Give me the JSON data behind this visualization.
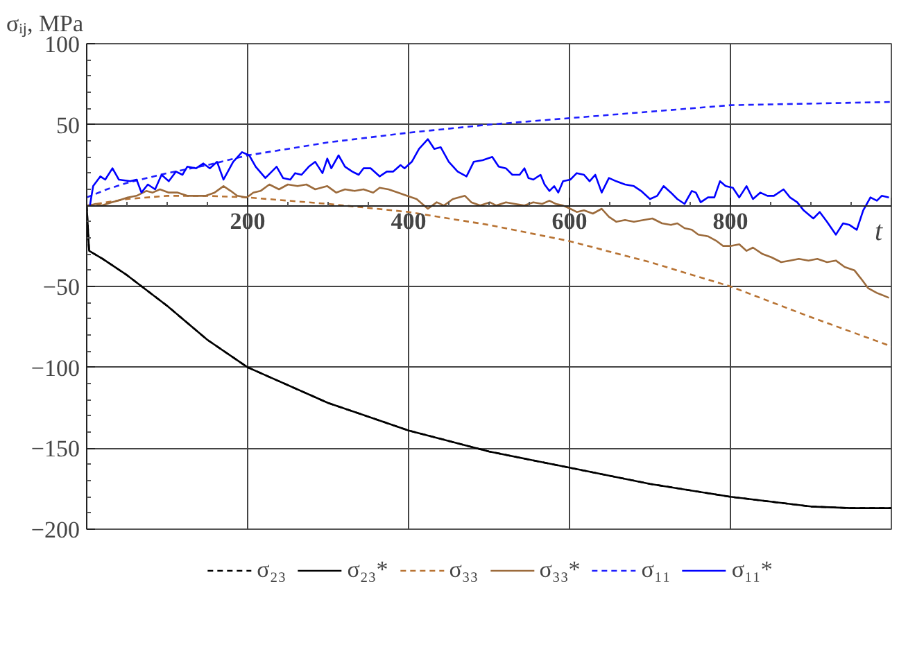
{
  "chart_data": {
    "type": "line",
    "xlabel": "t",
    "ylabel": "σᵢⱼ, MPa",
    "xlim": [
      0,
      1000
    ],
    "ylim": [
      -200,
      100
    ],
    "xticks": [
      200,
      400,
      600,
      800,
      {
        "value": 1000,
        "label": null
      }
    ],
    "yticks": [
      -200,
      -150,
      -100,
      -50,
      {
        "value": 0,
        "label": null
      },
      50,
      100
    ],
    "grid": true,
    "legend": "bottom",
    "series": [
      {
        "name": "σ₂₃*",
        "color": "#000000",
        "line_style": "solid",
        "x": [
          0,
          3,
          20,
          50,
          100,
          150,
          200,
          300,
          400,
          500,
          600,
          700,
          800,
          900,
          950,
          1000
        ],
        "values": [
          0,
          -28,
          -33,
          -43,
          -62,
          -83,
          -100,
          -122,
          -139,
          -152,
          -162,
          -172,
          -180,
          -186,
          -187,
          -187
        ]
      },
      {
        "name": "σ₂₃",
        "color": "#000000",
        "line_style": "dashed",
        "x": [
          0,
          3,
          20,
          50,
          100,
          150,
          200,
          300,
          400,
          500,
          600,
          700,
          800,
          900,
          950,
          1000
        ],
        "values": [
          0,
          -28,
          -33,
          -43,
          -62,
          -83,
          -100,
          -122,
          -139,
          -152,
          -162,
          -172,
          -180,
          -186,
          -187,
          -187
        ]
      },
      {
        "name": "σ₃₃",
        "color": "#b87333",
        "line_style": "dashed",
        "x": [
          0,
          50,
          100,
          150,
          200,
          300,
          400,
          500,
          600,
          700,
          800,
          900,
          1000
        ],
        "values": [
          0,
          4,
          6,
          6,
          5,
          1,
          -4,
          -12,
          -22,
          -35,
          -50,
          -69,
          -87
        ]
      },
      {
        "name": "σ₃₃*",
        "color": "#9c6b3c",
        "line_style": "solid",
        "x": [
          4,
          11,
          19,
          31,
          39,
          51,
          62,
          74,
          82,
          91,
          102,
          113,
          125,
          136,
          148,
          159,
          170,
          179,
          187,
          199,
          207,
          216,
          227,
          239,
          250,
          262,
          273,
          284,
          299,
          310,
          321,
          333,
          344,
          356,
          364,
          375,
          387,
          398,
          410,
          424,
          435,
          444,
          455,
          470,
          478,
          489,
          501,
          509,
          521,
          532,
          544,
          555,
          566,
          575,
          583,
          592,
          601,
          609,
          618,
          629,
          640,
          649,
          658,
          669,
          680,
          692,
          703,
          715,
          726,
          734,
          743,
          752,
          760,
          772,
          783,
          791,
          800,
          811,
          820,
          828,
          840,
          851,
          863,
          874,
          885,
          897,
          908,
          920,
          931,
          942,
          954,
          962,
          971,
          982,
          997
        ],
        "values": [
          0,
          1,
          0,
          2,
          3,
          5,
          6,
          9,
          8,
          10,
          8,
          8,
          6,
          6,
          6,
          8,
          12,
          9,
          6,
          5,
          8,
          9,
          13,
          10,
          13,
          12,
          13,
          10,
          12,
          8,
          10,
          9,
          10,
          8,
          11,
          10,
          8,
          6,
          4,
          -2,
          2,
          0,
          4,
          6,
          2,
          0,
          2,
          0,
          2,
          1,
          0,
          2,
          1,
          3,
          1,
          0,
          -2,
          -4,
          -3,
          -5,
          -2,
          -7,
          -10,
          -9,
          -10,
          -9,
          -8,
          -11,
          -12,
          -11,
          -14,
          -15,
          -18,
          -19,
          -22,
          -25,
          -25,
          -24,
          -28,
          -26,
          -30,
          -32,
          -35,
          -34,
          -33,
          -34,
          -33,
          -35,
          -34,
          -38,
          -40,
          -45,
          -51,
          -54,
          -57
        ]
      },
      {
        "name": "σ₁₁",
        "color": "#1f1fff",
        "line_style": "dashed",
        "x": [
          0,
          25,
          50,
          100,
          150,
          200,
          300,
          400,
          500,
          600,
          700,
          800,
          900,
          1000
        ],
        "values": [
          5,
          10,
          14,
          20,
          25,
          31,
          39,
          45,
          50,
          54,
          58,
          62,
          63,
          64
        ]
      },
      {
        "name": "σ₁₁*",
        "color": "#0000ff",
        "line_style": "solid",
        "x": [
          4,
          8,
          17,
          23,
          32,
          40,
          54,
          62,
          68,
          76,
          85,
          93,
          102,
          111,
          119,
          125,
          136,
          145,
          153,
          162,
          170,
          182,
          193,
          202,
          210,
          222,
          230,
          236,
          244,
          253,
          259,
          267,
          276,
          284,
          293,
          299,
          304,
          313,
          321,
          330,
          338,
          344,
          353,
          364,
          373,
          381,
          390,
          395,
          404,
          413,
          424,
          432,
          440,
          450,
          461,
          472,
          481,
          492,
          504,
          512,
          521,
          529,
          538,
          544,
          549,
          555,
          564,
          569,
          575,
          581,
          586,
          592,
          601,
          609,
          618,
          625,
          632,
          640,
          649,
          658,
          669,
          680,
          689,
          700,
          709,
          717,
          726,
          734,
          743,
          752,
          757,
          763,
          772,
          780,
          787,
          794,
          803,
          811,
          820,
          828,
          837,
          846,
          854,
          866,
          874,
          883,
          891,
          903,
          911,
          920,
          931,
          940,
          948,
          957,
          965,
          974,
          982,
          988,
          997
        ],
        "values": [
          0,
          12,
          18,
          16,
          23,
          16,
          15,
          16,
          8,
          13,
          10,
          19,
          15,
          21,
          19,
          24,
          23,
          26,
          23,
          27,
          16,
          27,
          33,
          31,
          24,
          17,
          21,
          24,
          17,
          16,
          20,
          19,
          24,
          27,
          20,
          29,
          23,
          31,
          24,
          21,
          19,
          23,
          23,
          18,
          21,
          21,
          25,
          23,
          27,
          35,
          41,
          35,
          36,
          27,
          21,
          18,
          27,
          28,
          30,
          24,
          23,
          19,
          19,
          23,
          17,
          16,
          19,
          13,
          9,
          12,
          8,
          15,
          16,
          20,
          19,
          15,
          19,
          8,
          17,
          15,
          13,
          12,
          9,
          4,
          6,
          12,
          8,
          4,
          1,
          9,
          8,
          2,
          5,
          5,
          15,
          12,
          11,
          5,
          12,
          4,
          8,
          6,
          6,
          10,
          5,
          2,
          -3,
          -8,
          -4,
          -10,
          -18,
          -11,
          -12,
          -15,
          -3,
          5,
          3,
          6,
          5
        ]
      }
    ]
  }
}
